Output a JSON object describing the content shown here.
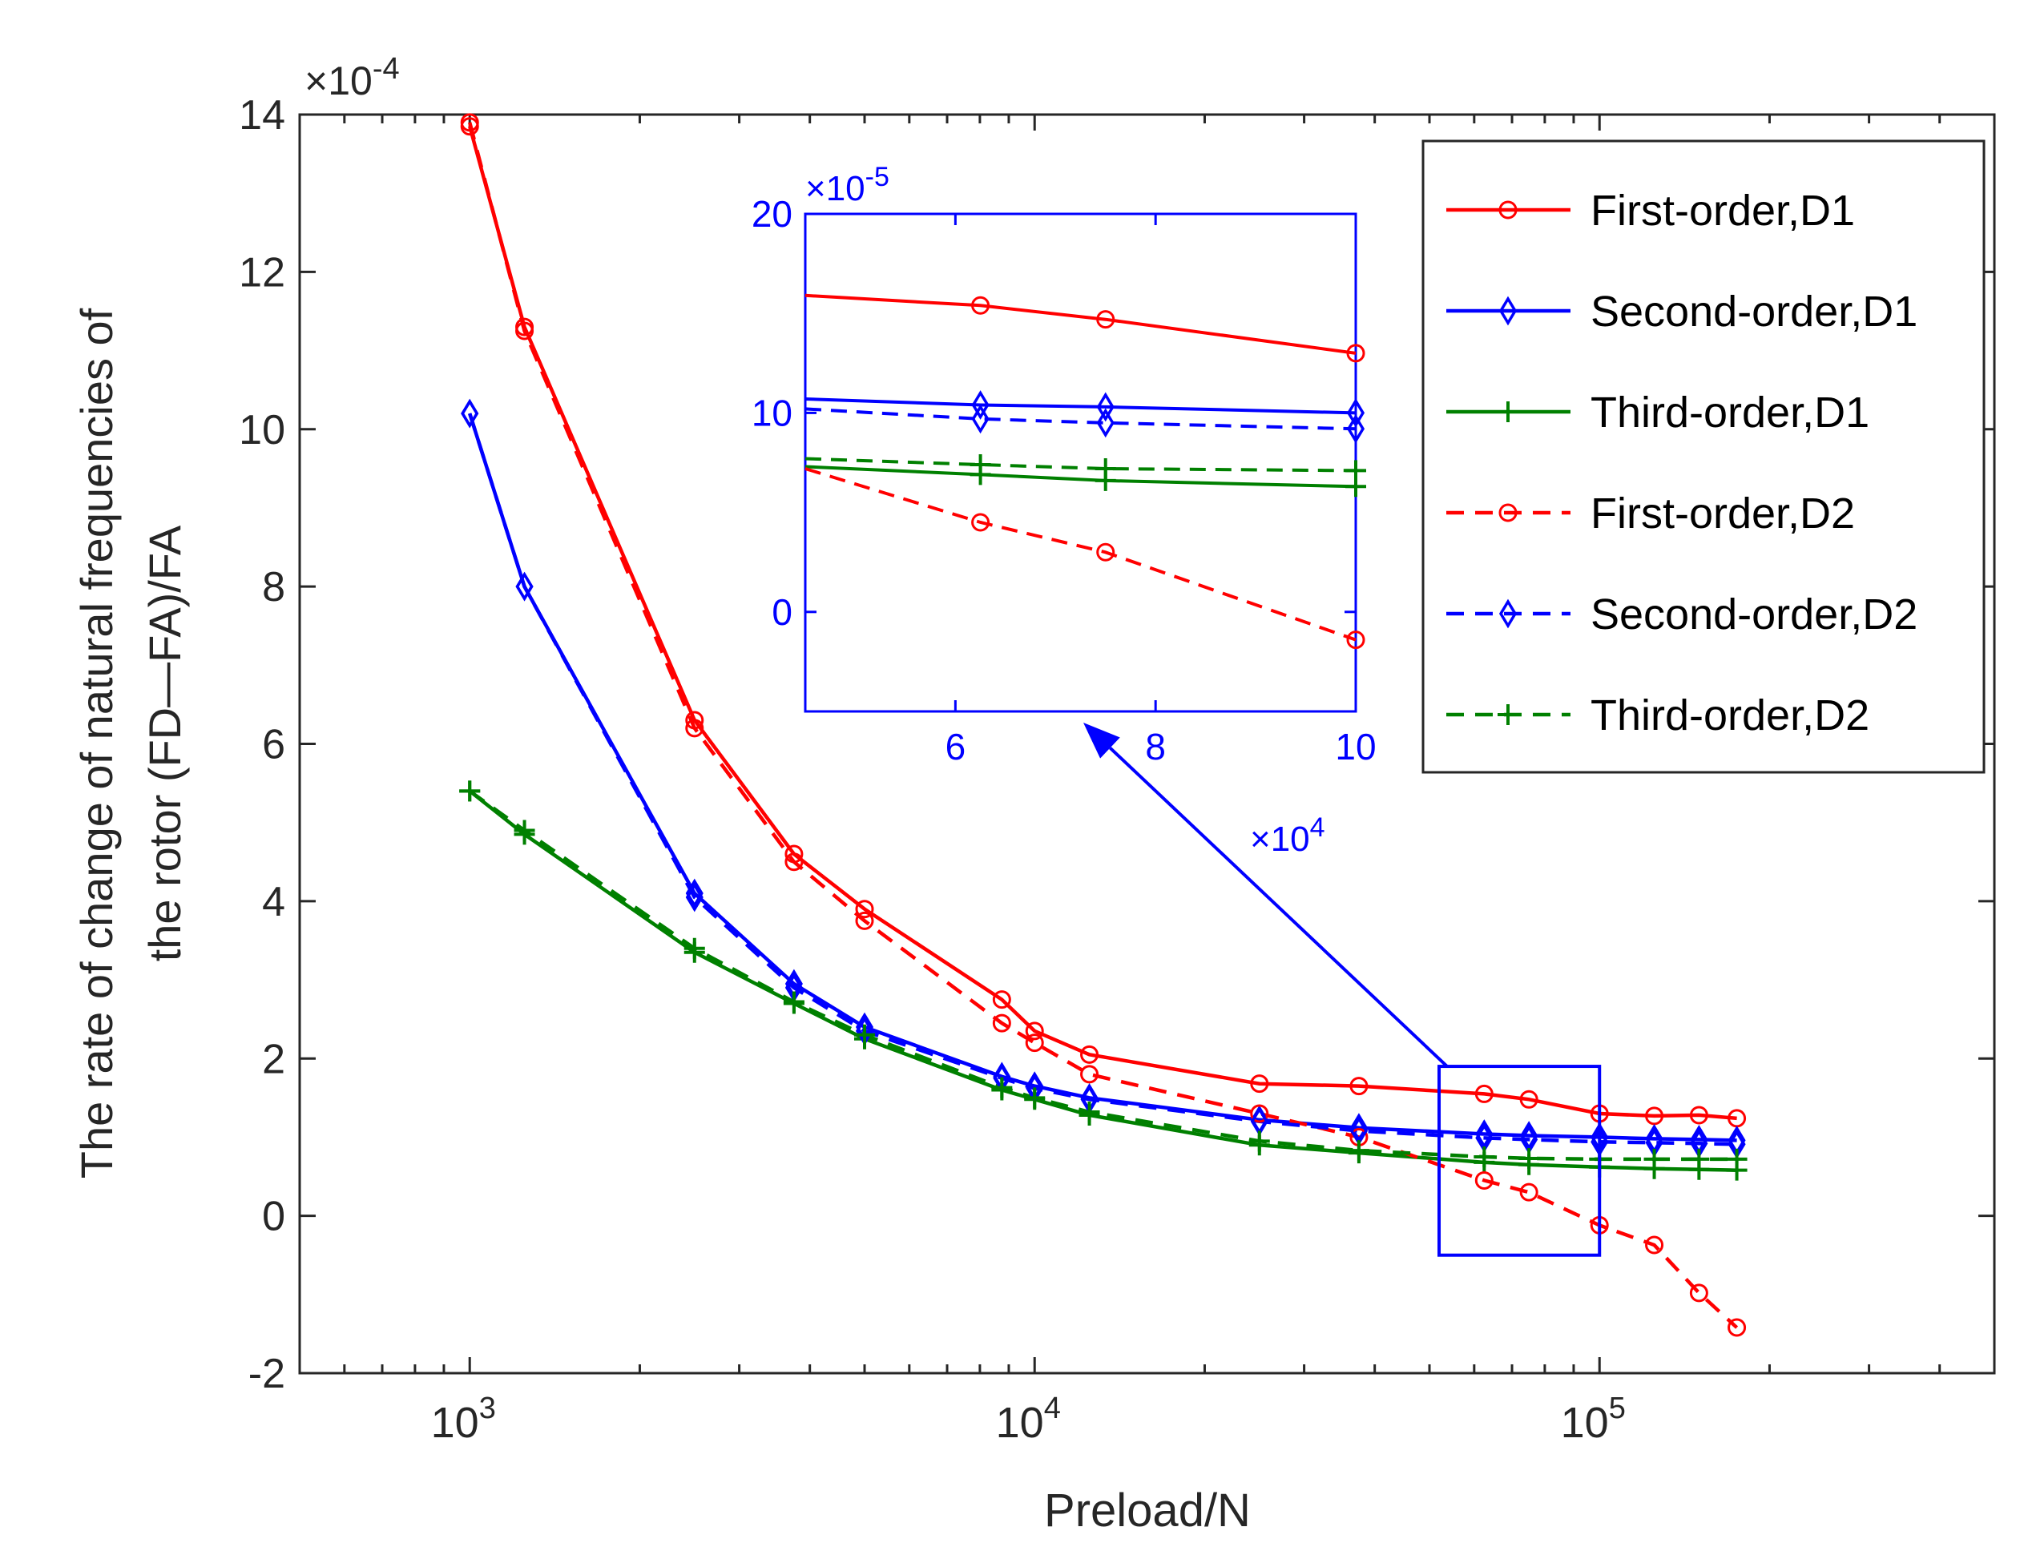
{
  "chart_data": {
    "type": "line",
    "xscale": "log",
    "xlim": [
      500,
      500000
    ],
    "ylim": [
      -2,
      14
    ],
    "y_multiplier_label": "×10",
    "y_multiplier_exp": "-4",
    "ylabel_line1": "The rate of change of natural frequencies of",
    "ylabel_line2": "the rotor (FD—FA)/FA",
    "xlabel": "Preload/N",
    "xticks": [
      {
        "value": 1000,
        "base": "10",
        "exp": "3"
      },
      {
        "value": 10000,
        "base": "10",
        "exp": "4"
      },
      {
        "value": 100000,
        "base": "10",
        "exp": "5"
      }
    ],
    "yticks": [
      -2,
      0,
      2,
      4,
      6,
      8,
      10,
      12,
      14
    ],
    "series": [
      {
        "name": "First-order,D1",
        "color": "#ff0000",
        "style": "solid",
        "marker": "circle",
        "x": [
          1000,
          1250,
          2500,
          3750,
          5000,
          8750,
          10000,
          12500,
          25000,
          37500,
          62500,
          75000,
          100000,
          125000,
          150000,
          175000
        ],
        "y": [
          13.85,
          11.3,
          6.3,
          4.6,
          3.9,
          2.75,
          2.35,
          2.05,
          1.68,
          1.65,
          1.55,
          1.48,
          1.3,
          1.27,
          1.28,
          1.24
        ]
      },
      {
        "name": "Second-order,D1",
        "color": "#0000ff",
        "style": "solid",
        "marker": "diamond",
        "x": [
          1000,
          1250,
          2500,
          3750,
          5000,
          8750,
          10000,
          12500,
          25000,
          37500,
          62500,
          75000,
          100000,
          125000,
          150000,
          175000
        ],
        "y": [
          10.2,
          8.0,
          4.1,
          2.95,
          2.4,
          1.77,
          1.65,
          1.5,
          1.22,
          1.12,
          1.04,
          1.02,
          1.0,
          0.98,
          0.97,
          0.96
        ]
      },
      {
        "name": "Third-order,D1",
        "color": "#008000",
        "style": "solid",
        "marker": "plus",
        "x": [
          1000,
          1250,
          2500,
          3750,
          5000,
          8750,
          10000,
          12500,
          25000,
          37500,
          62500,
          75000,
          100000,
          125000,
          150000,
          175000
        ],
        "y": [
          5.4,
          4.85,
          3.35,
          2.7,
          2.25,
          1.6,
          1.48,
          1.28,
          0.9,
          0.8,
          0.68,
          0.65,
          0.62,
          0.6,
          0.59,
          0.58
        ]
      },
      {
        "name": "First-order,D2",
        "color": "#ff0000",
        "style": "dashed",
        "marker": "circle",
        "x": [
          1000,
          1250,
          2500,
          3750,
          5000,
          8750,
          10000,
          12500,
          25000,
          37500,
          62500,
          75000,
          100000,
          125000,
          150000,
          175000
        ],
        "y": [
          13.9,
          11.25,
          6.2,
          4.5,
          3.75,
          2.45,
          2.2,
          1.8,
          1.3,
          1.0,
          0.45,
          0.3,
          -0.12,
          -0.37,
          -0.98,
          -1.42
        ]
      },
      {
        "name": "Second-order,D2",
        "color": "#0000ff",
        "style": "dashed",
        "marker": "diamond",
        "x": [
          1000,
          1250,
          2500,
          3750,
          5000,
          8750,
          10000,
          12500,
          25000,
          37500,
          62500,
          75000,
          100000,
          125000,
          150000,
          175000
        ],
        "y": [
          10.2,
          8.0,
          4.05,
          2.9,
          2.35,
          1.75,
          1.62,
          1.48,
          1.2,
          1.08,
          0.99,
          0.97,
          0.94,
          0.93,
          0.92,
          0.91
        ]
      },
      {
        "name": "Third-order,D2",
        "color": "#008000",
        "style": "dashed",
        "marker": "plus",
        "x": [
          1000,
          1250,
          2500,
          3750,
          5000,
          8750,
          10000,
          12500,
          25000,
          37500,
          62500,
          75000,
          100000,
          125000,
          150000,
          175000
        ],
        "y": [
          5.4,
          4.9,
          3.4,
          2.72,
          2.3,
          1.63,
          1.5,
          1.32,
          0.95,
          0.83,
          0.75,
          0.73,
          0.72,
          0.72,
          0.72,
          0.72
        ]
      }
    ],
    "legend_position": "top-right",
    "inset": {
      "xlim": [
        45000,
        100000
      ],
      "ylim": [
        -5,
        20
      ],
      "xscale": "linear",
      "xticks": [
        {
          "value": 60000,
          "label": "6"
        },
        {
          "value": 80000,
          "label": "8"
        },
        {
          "value": 100000,
          "label": "10"
        }
      ],
      "yticks": [
        {
          "value": 0,
          "label": "0"
        },
        {
          "value": 10,
          "label": "10"
        },
        {
          "value": 20,
          "label": "20"
        }
      ],
      "x_multiplier_label": "×10",
      "x_multiplier_exp": "4",
      "y_multiplier_label": "×10",
      "y_multiplier_exp": "-5",
      "series": [
        {
          "name": "First-order,D1",
          "color": "#ff0000",
          "style": "solid",
          "marker": "circle",
          "x": [
            45000,
            62500,
            75000,
            100000
          ],
          "y": [
            15.9,
            15.4,
            14.7,
            13.0
          ]
        },
        {
          "name": "Second-order,D1",
          "color": "#0000ff",
          "style": "solid",
          "marker": "diamond",
          "x": [
            45000,
            62500,
            75000,
            100000
          ],
          "y": [
            10.7,
            10.4,
            10.3,
            10.0
          ]
        },
        {
          "name": "Third-order,D1",
          "color": "#008000",
          "style": "solid",
          "marker": "plus",
          "x": [
            45000,
            62500,
            75000,
            100000
          ],
          "y": [
            7.3,
            6.9,
            6.6,
            6.3
          ]
        },
        {
          "name": "First-order,D2",
          "color": "#ff0000",
          "style": "dashed",
          "marker": "circle",
          "x": [
            45000,
            62500,
            75000,
            100000
          ],
          "y": [
            7.2,
            4.5,
            3.0,
            -1.4
          ]
        },
        {
          "name": "Second-order,D2",
          "color": "#0000ff",
          "style": "dashed",
          "marker": "diamond",
          "x": [
            45000,
            62500,
            75000,
            100000
          ],
          "y": [
            10.2,
            9.7,
            9.5,
            9.2
          ]
        },
        {
          "name": "Third-order,D2",
          "color": "#008000",
          "style": "dashed",
          "marker": "plus",
          "x": [
            45000,
            62500,
            75000,
            100000
          ],
          "y": [
            7.7,
            7.4,
            7.2,
            7.1
          ]
        }
      ]
    },
    "zoom_region": {
      "x": [
        52000,
        100000
      ],
      "y": [
        -0.5,
        1.9
      ]
    }
  }
}
